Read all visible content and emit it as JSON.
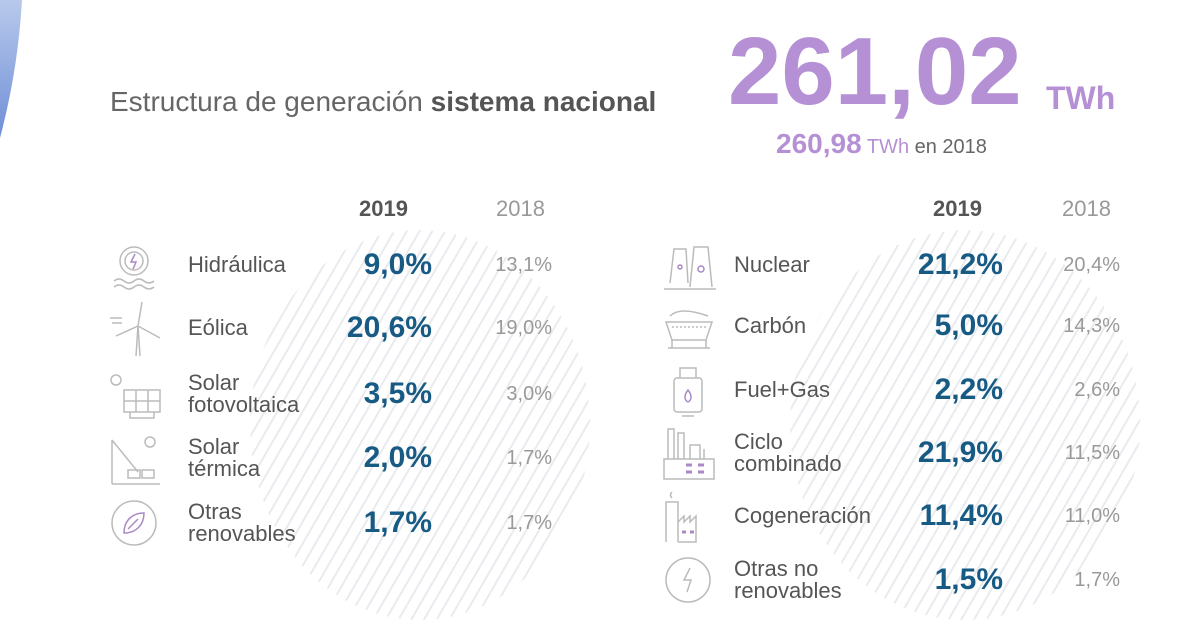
{
  "header": {
    "title_regular": "Estructura de generación",
    "title_bold": "sistema nacional",
    "total_value": "261,02",
    "total_unit": "TWh",
    "previous_value": "260,98",
    "previous_unit": "TWh",
    "previous_suffix": "en 2018"
  },
  "colors": {
    "accent": "#b590d4",
    "value": "#175b85"
  },
  "columns": {
    "current": "2019",
    "previous": "2018"
  },
  "renewables": [
    {
      "icon": "hydro-icon",
      "label1": "Hidráulica",
      "label2": "",
      "v2019": "9,0%",
      "v2018": "13,1%"
    },
    {
      "icon": "wind-turbine-icon",
      "label1": "Eólica",
      "label2": "",
      "v2019": "20,6%",
      "v2018": "19,0%"
    },
    {
      "icon": "solar-panel-icon",
      "label1": "Solar",
      "label2": "fotovoltaica",
      "v2019": "3,5%",
      "v2018": "3,0%"
    },
    {
      "icon": "solar-thermal-icon",
      "label1": "Solar",
      "label2": "térmica",
      "v2019": "2,0%",
      "v2018": "1,7%"
    },
    {
      "icon": "leaf-recycle-icon",
      "label1": "Otras",
      "label2": "renovables",
      "v2019": "1,7%",
      "v2018": "1,7%"
    }
  ],
  "non_renewables": [
    {
      "icon": "nuclear-plant-icon",
      "label1": "Nuclear",
      "label2": "",
      "v2019": "21,2%",
      "v2018": "20,4%"
    },
    {
      "icon": "coal-wagon-icon",
      "label1": "Carbón",
      "label2": "",
      "v2019": "5,0%",
      "v2018": "14,3%"
    },
    {
      "icon": "gas-cylinder-icon",
      "label1": "Fuel+Gas",
      "label2": "",
      "v2019": "2,2%",
      "v2018": "2,6%"
    },
    {
      "icon": "combined-cycle-plant-icon",
      "label1": "Ciclo",
      "label2": "combinado",
      "v2019": "21,9%",
      "v2018": "11,5%"
    },
    {
      "icon": "factory-icon",
      "label1": "Cogeneración",
      "label2": "",
      "v2019": "11,4%",
      "v2018": "11,0%"
    },
    {
      "icon": "bolt-recycle-icon",
      "label1": "Otras no",
      "label2": "renovables",
      "v2019": "1,5%",
      "v2018": "1,7%"
    }
  ]
}
